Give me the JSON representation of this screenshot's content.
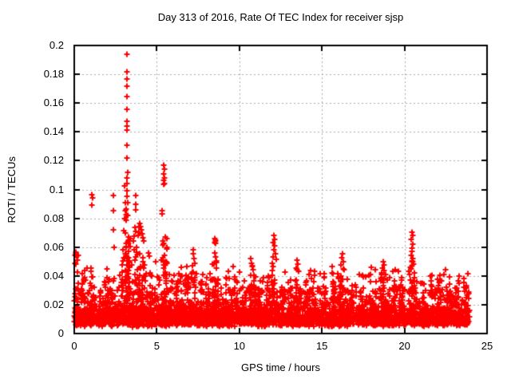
{
  "figure": {
    "background": "#ffffff",
    "text_color": "#000000"
  },
  "chart_data": {
    "type": "scatter",
    "title": "Day 313 of 2016, Rate Of TEC Index for receiver sjsp",
    "xlabel": "GPS time / hours",
    "ylabel": "ROTI / TECUs",
    "xlim": [
      0,
      25
    ],
    "ylim": [
      0,
      0.2
    ],
    "xticks": [
      0,
      5,
      10,
      15,
      20,
      25
    ],
    "xtick_labels": [
      "0",
      "5",
      "10",
      "15",
      "20",
      "25"
    ],
    "yticks": [
      0,
      0.02,
      0.04,
      0.06,
      0.08,
      0.1,
      0.12,
      0.14,
      0.16,
      0.18,
      0.2
    ],
    "ytick_labels": [
      "0",
      "0.02",
      "0.04",
      "0.06",
      "0.08",
      "0.1",
      "0.12",
      "0.14",
      "0.16",
      "0.18",
      "0.2"
    ],
    "grid": {
      "show": true,
      "color": "#a8a8a8",
      "dash": [
        2,
        3
      ]
    },
    "border_color": "#000000",
    "marker": {
      "shape": "plus",
      "color": "#ff0000",
      "size": 7,
      "stroke": 2
    },
    "series_name": "ROTI",
    "legend": "none",
    "data_span_hours": [
      0,
      23.95
    ],
    "generator": {
      "seed": 313,
      "baseline": {
        "n": 3000,
        "x_max": 23.95,
        "floor_min": 0.0045,
        "floor_span": 0.0045,
        "tail_scale": 0.0062,
        "tail_cap": 0.023
      },
      "mid_scatter": {
        "n": 160,
        "y_min": 0.026,
        "y_max": 0.042
      },
      "sparse_mid": {
        "n": 30,
        "y_min": 0.038,
        "y_max": 0.048
      },
      "bumps": [
        [
          0.15,
          0.12,
          0.056,
          20
        ],
        [
          0.5,
          0.15,
          0.044,
          14
        ],
        [
          1.1,
          0.15,
          0.046,
          16
        ],
        [
          1.6,
          0.15,
          0.038,
          12
        ],
        [
          2.0,
          0.12,
          0.04,
          12
        ],
        [
          2.4,
          0.15,
          0.046,
          14
        ],
        [
          2.8,
          0.12,
          0.044,
          12
        ],
        [
          3.1,
          0.2,
          0.062,
          30
        ],
        [
          3.25,
          0.15,
          0.075,
          40
        ],
        [
          3.8,
          0.2,
          0.06,
          26
        ],
        [
          4.15,
          0.15,
          0.056,
          18
        ],
        [
          4.5,
          0.15,
          0.05,
          14
        ],
        [
          5.0,
          0.12,
          0.044,
          12
        ],
        [
          5.45,
          0.18,
          0.068,
          40
        ],
        [
          5.85,
          0.12,
          0.042,
          12
        ],
        [
          6.3,
          0.15,
          0.04,
          14
        ],
        [
          6.9,
          0.12,
          0.036,
          10
        ],
        [
          7.25,
          0.15,
          0.05,
          16
        ],
        [
          7.7,
          0.12,
          0.037,
          10
        ],
        [
          8.1,
          0.12,
          0.04,
          12
        ],
        [
          8.55,
          0.18,
          0.052,
          24
        ],
        [
          9.3,
          0.15,
          0.04,
          14
        ],
        [
          9.8,
          0.12,
          0.037,
          10
        ],
        [
          10.3,
          0.12,
          0.04,
          12
        ],
        [
          10.75,
          0.15,
          0.048,
          18
        ],
        [
          11.3,
          0.12,
          0.038,
          10
        ],
        [
          11.75,
          0.12,
          0.04,
          10
        ],
        [
          12.1,
          0.15,
          0.052,
          20
        ],
        [
          12.7,
          0.12,
          0.037,
          10
        ],
        [
          13.1,
          0.12,
          0.038,
          10
        ],
        [
          13.55,
          0.15,
          0.047,
          16
        ],
        [
          14.05,
          0.12,
          0.04,
          10
        ],
        [
          14.5,
          0.12,
          0.042,
          10
        ],
        [
          15.15,
          0.15,
          0.042,
          12
        ],
        [
          15.7,
          0.12,
          0.038,
          10
        ],
        [
          16.2,
          0.18,
          0.047,
          16
        ],
        [
          16.8,
          0.12,
          0.037,
          10
        ],
        [
          17.4,
          0.12,
          0.038,
          10
        ],
        [
          18.0,
          0.12,
          0.04,
          10
        ],
        [
          18.7,
          0.15,
          0.044,
          14
        ],
        [
          19.3,
          0.12,
          0.041,
          12
        ],
        [
          19.85,
          0.12,
          0.038,
          10
        ],
        [
          20.45,
          0.18,
          0.055,
          36
        ],
        [
          21.1,
          0.12,
          0.037,
          10
        ],
        [
          21.6,
          0.12,
          0.038,
          10
        ],
        [
          22.1,
          0.12,
          0.04,
          12
        ],
        [
          22.65,
          0.12,
          0.036,
          10
        ],
        [
          23.2,
          0.15,
          0.039,
          12
        ],
        [
          23.7,
          0.12,
          0.037,
          10
        ]
      ]
    },
    "notable_points": [
      [
        0.1,
        0.0565
      ],
      [
        0.14,
        0.054
      ],
      [
        0.18,
        0.051
      ],
      [
        0.12,
        0.048
      ],
      [
        1.05,
        0.0965
      ],
      [
        1.1,
        0.094
      ],
      [
        1.08,
        0.089
      ],
      [
        2.35,
        0.096
      ],
      [
        2.38,
        0.0855
      ],
      [
        2.36,
        0.072
      ],
      [
        2.42,
        0.06
      ],
      [
        3.05,
        0.1025
      ],
      [
        3.1,
        0.091
      ],
      [
        3.08,
        0.0855
      ],
      [
        3.12,
        0.0825
      ],
      [
        3.06,
        0.08
      ],
      [
        3.0,
        0.0715
      ],
      [
        3.1,
        0.07
      ],
      [
        3.15,
        0.0625
      ],
      [
        2.95,
        0.058
      ],
      [
        3.2,
        0.194
      ],
      [
        3.2,
        0.1815
      ],
      [
        3.21,
        0.177
      ],
      [
        3.19,
        0.172
      ],
      [
        3.2,
        0.1645
      ],
      [
        3.21,
        0.1555
      ],
      [
        3.2,
        0.1475
      ],
      [
        3.19,
        0.144
      ],
      [
        3.21,
        0.141
      ],
      [
        3.2,
        0.131
      ],
      [
        3.2,
        0.122
      ],
      [
        3.22,
        0.112
      ],
      [
        3.2,
        0.108
      ],
      [
        3.18,
        0.104
      ],
      [
        3.2,
        0.099
      ],
      [
        3.17,
        0.0955
      ],
      [
        3.23,
        0.091
      ],
      [
        3.15,
        0.0865
      ],
      [
        3.25,
        0.082
      ],
      [
        3.12,
        0.0785
      ],
      [
        3.7,
        0.0958
      ],
      [
        3.72,
        0.09
      ],
      [
        3.71,
        0.0858
      ],
      [
        3.68,
        0.0735
      ],
      [
        3.74,
        0.071
      ],
      [
        3.65,
        0.0675
      ],
      [
        3.6,
        0.0642
      ],
      [
        3.95,
        0.0765
      ],
      [
        3.9,
        0.074
      ],
      [
        4.0,
        0.0745
      ],
      [
        4.05,
        0.072
      ],
      [
        3.92,
        0.0705
      ],
      [
        4.1,
        0.069
      ],
      [
        3.88,
        0.068
      ],
      [
        4.15,
        0.0665
      ],
      [
        4.2,
        0.0645
      ],
      [
        4.5,
        0.056
      ],
      [
        4.55,
        0.0535
      ],
      [
        4.93,
        0.05
      ],
      [
        5.42,
        0.117
      ],
      [
        5.45,
        0.114
      ],
      [
        5.44,
        0.111
      ],
      [
        5.47,
        0.108
      ],
      [
        5.42,
        0.1065
      ],
      [
        5.45,
        0.104
      ],
      [
        5.4,
        0.1035
      ],
      [
        5.33,
        0.0855
      ],
      [
        5.3,
        0.083
      ],
      [
        5.36,
        0.0645
      ],
      [
        5.42,
        0.0625
      ],
      [
        5.5,
        0.0475
      ],
      [
        6.35,
        0.0415
      ],
      [
        6.55,
        0.04
      ],
      [
        7.2,
        0.058
      ],
      [
        7.22,
        0.0554
      ],
      [
        7.25,
        0.052
      ],
      [
        7.3,
        0.049
      ],
      [
        7.15,
        0.047
      ],
      [
        8.5,
        0.066
      ],
      [
        8.55,
        0.065
      ],
      [
        8.58,
        0.064
      ],
      [
        8.52,
        0.063
      ],
      [
        8.56,
        0.0625
      ],
      [
        8.52,
        0.056
      ],
      [
        8.57,
        0.053
      ],
      [
        8.62,
        0.0505
      ],
      [
        8.47,
        0.048
      ],
      [
        9.35,
        0.043
      ],
      [
        10.7,
        0.052
      ],
      [
        10.75,
        0.049
      ],
      [
        10.8,
        0.0465
      ],
      [
        10.85,
        0.0445
      ],
      [
        12.08,
        0.068
      ],
      [
        12.12,
        0.0655
      ],
      [
        12.05,
        0.063
      ],
      [
        12.15,
        0.061
      ],
      [
        12.1,
        0.058
      ],
      [
        12.18,
        0.0555
      ],
      [
        12.06,
        0.053
      ],
      [
        13.5,
        0.051
      ],
      [
        13.55,
        0.048
      ],
      [
        13.45,
        0.0455
      ],
      [
        13.6,
        0.043
      ],
      [
        14.55,
        0.043
      ],
      [
        15.15,
        0.0415
      ],
      [
        16.25,
        0.0554
      ],
      [
        16.2,
        0.0526
      ],
      [
        16.28,
        0.05
      ],
      [
        16.15,
        0.0475
      ],
      [
        16.32,
        0.045
      ],
      [
        17.25,
        0.041
      ],
      [
        18.7,
        0.05
      ],
      [
        18.75,
        0.0475
      ],
      [
        18.65,
        0.0455
      ],
      [
        19.3,
        0.043
      ],
      [
        20.45,
        0.0705
      ],
      [
        20.48,
        0.068
      ],
      [
        20.42,
        0.0655
      ],
      [
        20.5,
        0.062
      ],
      [
        20.44,
        0.0595
      ],
      [
        20.47,
        0.057
      ],
      [
        20.4,
        0.0545
      ],
      [
        20.52,
        0.052
      ],
      [
        20.46,
        0.05
      ],
      [
        20.55,
        0.048
      ],
      [
        20.38,
        0.046
      ],
      [
        21.55,
        0.04
      ],
      [
        22.15,
        0.0405
      ],
      [
        23.3,
        0.04
      ],
      [
        23.6,
        0.0385
      ]
    ]
  }
}
